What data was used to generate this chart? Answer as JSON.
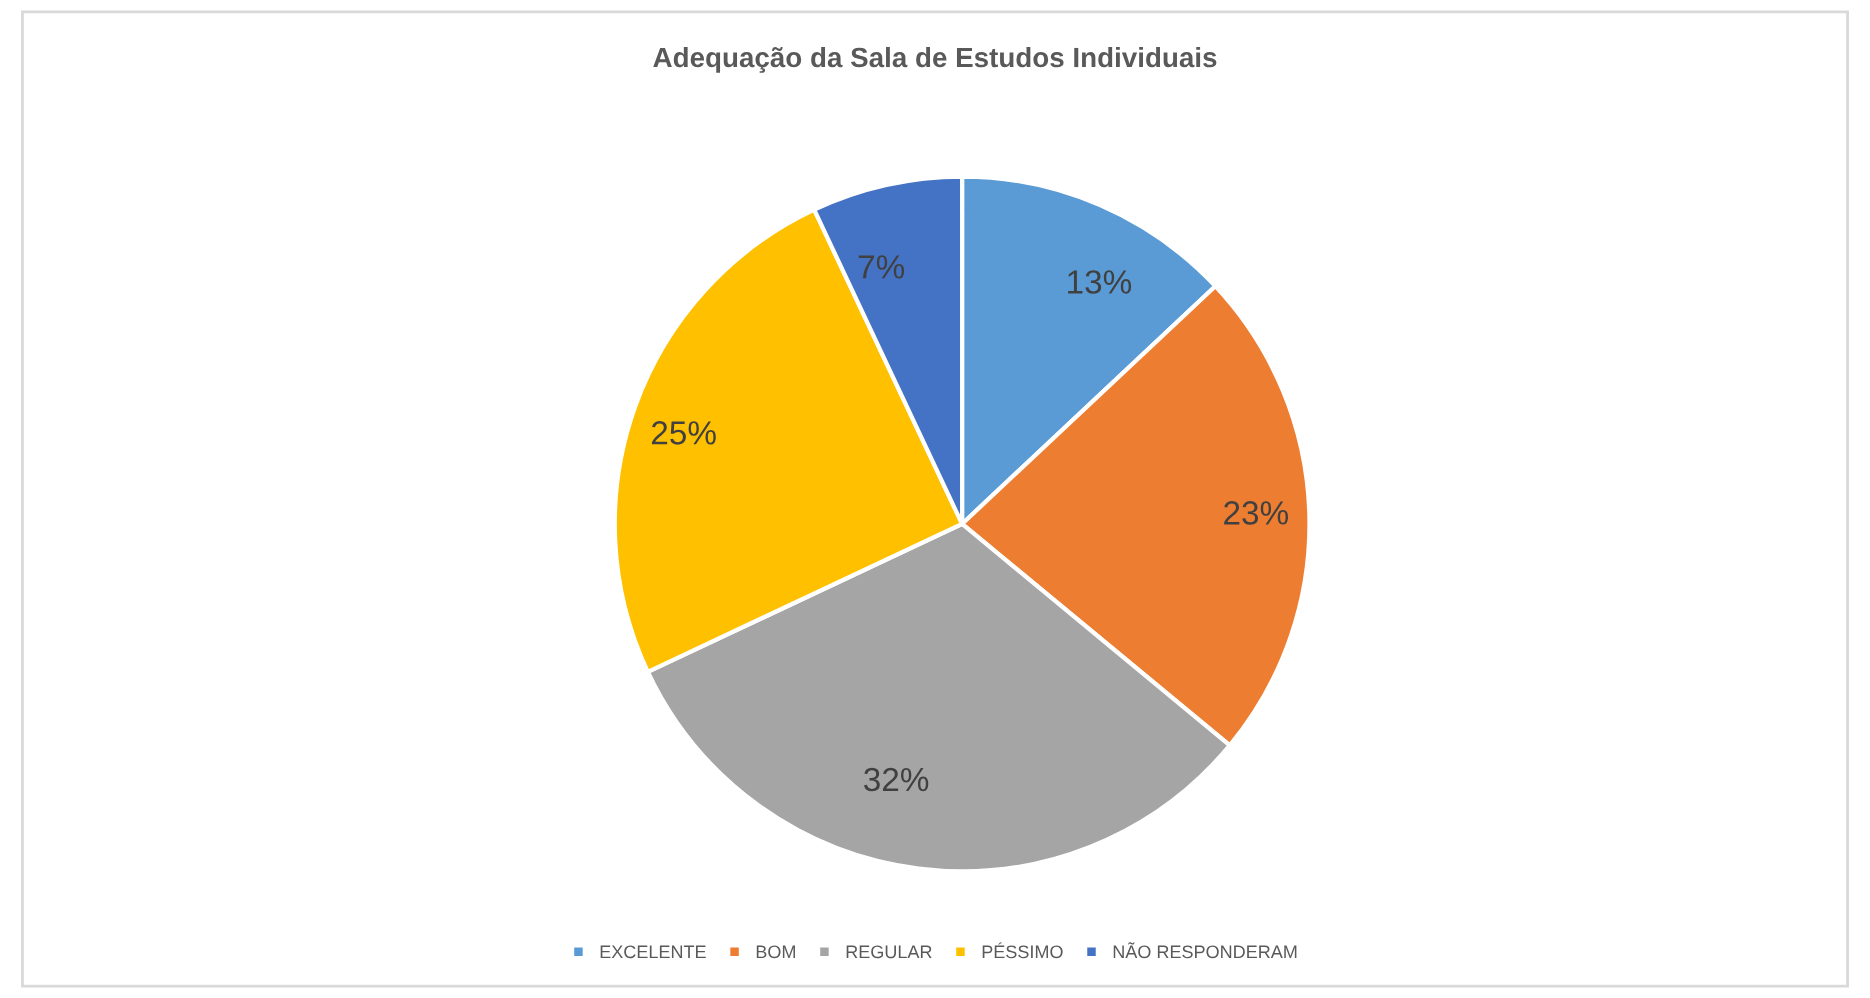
{
  "chart_data": {
    "type": "pie",
    "title": "Adequação da Sala de Estudos Individuais",
    "categories": [
      "EXCELENTE",
      "BOM",
      "REGULAR",
      "PÉSSIMO",
      "NÃO RESPONDERAM"
    ],
    "values": [
      13,
      23,
      32,
      25,
      7
    ],
    "colors": [
      "#5b9bd5",
      "#ed7d31",
      "#a5a5a5",
      "#ffc000",
      "#4472c4"
    ],
    "value_labels": [
      "13%",
      "23%",
      "32%",
      "25%",
      "7%"
    ],
    "legend": "bottom"
  }
}
